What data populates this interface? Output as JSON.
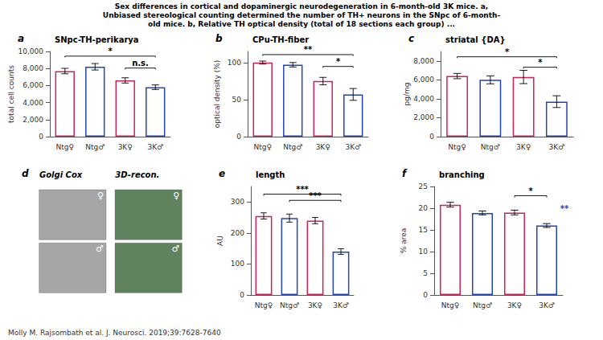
{
  "title": [
    "Sex differences in cortical and dopaminergic neurodegeneration in 6-month-old 3K mice. a,",
    "Unbiased stereological counting determined the number of TH+ neurons in the SNpc of 6-month-",
    "old mice. b, Relative TH optical density (total of 18 sections each group) ..."
  ],
  "annotations": [
    "Molly M. Rajsombath et al. J. Neurosci. 2019;39:7628-7640"
  ],
  "chart_data": [
    {
      "type": "bar",
      "label": "a",
      "title": "SNpc-TH-perikarya",
      "categories": [
        "Ntg♀",
        "Ntg♂",
        "3K♀",
        "3K♂"
      ],
      "values": [
        7700,
        8200,
        6600,
        5800
      ],
      "errors": [
        320,
        380,
        310,
        270
      ],
      "colors": [
        "#cc2255",
        "#2244bb",
        "#cc2255",
        "#2244bb"
      ],
      "ylabel": "total cell counts",
      "ylim": [
        0,
        10000
      ],
      "yticks": [
        0,
        2000,
        4000,
        6000,
        8000,
        10000
      ],
      "grid": false,
      "annotations": [
        {
          "text": "*",
          "from": "Ntg♀",
          "to": "3K♂",
          "y": 9300
        },
        {
          "text": "n.s.",
          "from": "3K♀",
          "to": "3K♂",
          "y": 7900
        }
      ]
    },
    {
      "type": "bar",
      "label": "b",
      "title": "CPu-TH-fiber",
      "categories": [
        "Ntg♀",
        "Ntg♂",
        "3K♀",
        "3K♂"
      ],
      "values": [
        100,
        97,
        75,
        57
      ],
      "errors": [
        2,
        3,
        5,
        8
      ],
      "colors": [
        "#cc2255",
        "#2244bb",
        "#cc2255",
        "#2244bb"
      ],
      "ylabel": "optical density (%)",
      "ylim": [
        0,
        115
      ],
      "yticks": [
        0,
        50,
        100
      ],
      "grid": false,
      "annotations": [
        {
          "text": "**",
          "from": "Ntg♀",
          "to": "3K♂",
          "y": 109
        },
        {
          "text": "*",
          "from": "3K♀",
          "to": "3K♂",
          "y": 93
        }
      ]
    },
    {
      "type": "bar",
      "label": "c",
      "title": "striatal {DA}",
      "categories": [
        "Ntg♀",
        "Ntg♂",
        "3K♀",
        "3K♂"
      ],
      "values": [
        6400,
        6000,
        6300,
        3700
      ],
      "errors": [
        280,
        420,
        700,
        620
      ],
      "colors": [
        "#cc2255",
        "#2244bb",
        "#cc2255",
        "#2244bb"
      ],
      "ylabel": "pg/mg",
      "ylim": [
        0,
        9000
      ],
      "yticks": [
        0,
        2000,
        4000,
        6000,
        8000
      ],
      "grid": false,
      "annotations": [
        {
          "text": "*",
          "from": "Ntg♀",
          "to": "3K♂",
          "y": 8300
        },
        {
          "text": "*",
          "from": "3K♀",
          "to": "3K♂",
          "y": 7200
        }
      ]
    },
    {
      "type": "image",
      "label": "d",
      "categories": [
        "Golgi Cox",
        "3D-recon."
      ],
      "annotations": [
        "♀",
        "♂"
      ]
    },
    {
      "type": "bar",
      "label": "e",
      "title": "length",
      "categories": [
        "Ntg♀",
        "Ntg♂",
        "3K♀",
        "3K♂"
      ],
      "values": [
        255,
        248,
        240,
        140
      ],
      "errors": [
        10,
        13,
        10,
        9
      ],
      "colors": [
        "#cc2255",
        "#2244bb",
        "#cc2255",
        "#2244bb"
      ],
      "ylabel": "AU",
      "ylim": [
        0,
        350
      ],
      "yticks": [
        0,
        100,
        200,
        300
      ],
      "grid": false,
      "annotations": [
        {
          "text": "***",
          "from": "Ntg♀",
          "to": "3K♂",
          "y": 320
        },
        {
          "text": "***",
          "from": "Ntg♂",
          "to": "3K♂",
          "y": 300
        }
      ]
    },
    {
      "type": "bar",
      "label": "f",
      "title": "branching",
      "categories": [
        "Ntg♀",
        "Ntg♂",
        "3K♀",
        "3K♂"
      ],
      "values": [
        20.8,
        18.9,
        19.0,
        16.0
      ],
      "errors": [
        0.55,
        0.45,
        0.55,
        0.45
      ],
      "colors": [
        "#cc2255",
        "#2244bb",
        "#cc2255",
        "#2244bb"
      ],
      "ylabel": "% area",
      "ylim": [
        0,
        25
      ],
      "yticks": [
        0,
        5,
        10,
        15,
        20,
        25
      ],
      "grid": false,
      "annotations": [
        {
          "text": "*",
          "from": "3K♀",
          "to": "3K♂",
          "y": 22.5
        },
        {
          "text": "**",
          "at": "3K♂",
          "y": 19.0,
          "color": "#2244bb"
        }
      ]
    }
  ]
}
